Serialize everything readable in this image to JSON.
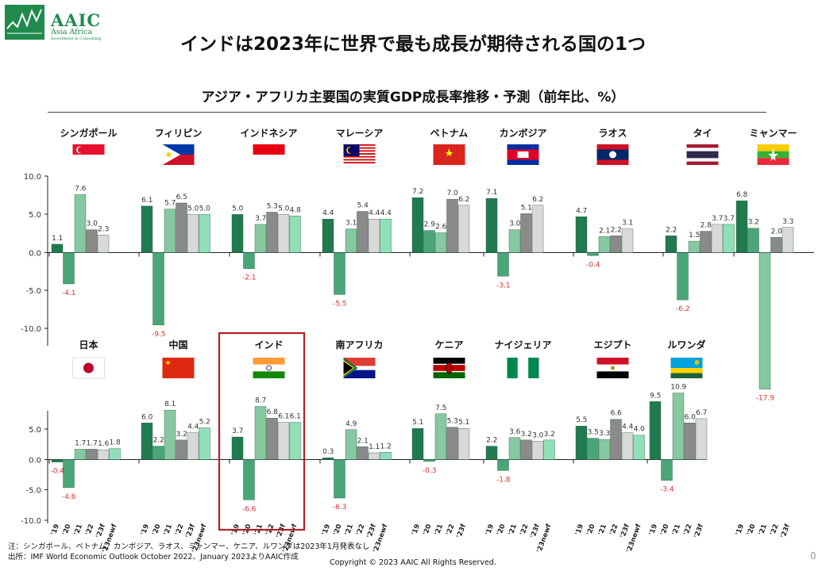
{
  "logo": {
    "name": "AAIC",
    "sub1": "Asia Africa",
    "sub2": "Investment & Consulting"
  },
  "page_title": "インドは2023年に世界で最も成長が期待される国の1つ",
  "notes": {
    "note1": "注：シンガポール、ベトナム、カンボジア、ラオス、ミャンマー、ケニア、ルワンダは2023年1月発表なし",
    "source": "出所：IMF World Economic Outlook October 2022、January 2023よりAAIC作成",
    "copyright": "Copyright © 2023 AAIC All Rights Reserved.",
    "page_number": "0"
  },
  "colors": {
    "bar_2019": "#217a4f",
    "bar_2020": "#4aa678",
    "bar_2021": "#86c8a0",
    "bar_2022": "#8a8a8a",
    "bar_2023f": "#d9d9d9",
    "bar_2023newf": "#8fe0b8",
    "negative_label": "#e03030",
    "highlight_box": "#b22222"
  },
  "chart_data": {
    "type": "bar",
    "title": "アジア・アフリカ主要国の実質GDP成長率推移・予測（前年比、%）",
    "categories": [
      "'19",
      "'20",
      "'21",
      "'22",
      "'23f",
      "'23newf"
    ],
    "highlighted_country": "インド",
    "rows": [
      {
        "ylim": [
          -10,
          10
        ],
        "yticks": [
          "10.0",
          "5.0",
          "0.0",
          "-5.0",
          "-10.0"
        ],
        "countries": [
          {
            "name": "シンガポール",
            "flag": "singapore",
            "values": [
              1.1,
              -4.1,
              7.6,
              3.0,
              2.3,
              null
            ],
            "labels": [
              "1.1",
              "-4.1",
              "7.6",
              "3.0",
              "2.3",
              ""
            ]
          },
          {
            "name": "フィリピン",
            "flag": "philippines",
            "values": [
              6.1,
              -9.5,
              5.7,
              6.5,
              5.0,
              5.0
            ],
            "labels": [
              "6.1",
              "-9.5",
              "5.7",
              "6.5",
              "5.0",
              "5.0"
            ]
          },
          {
            "name": "インドネシア",
            "flag": "indonesia",
            "values": [
              5.0,
              -2.1,
              3.7,
              5.3,
              5.0,
              4.8
            ],
            "labels": [
              "5.0",
              "-2.1",
              "3.7",
              "5.3",
              "5.0",
              "4.8"
            ]
          },
          {
            "name": "マレーシア",
            "flag": "malaysia",
            "values": [
              4.4,
              -5.5,
              3.1,
              5.4,
              4.4,
              4.4
            ],
            "labels": [
              "4.4",
              "-5.5",
              "3.1",
              "5.4",
              "4.4",
              "4.4"
            ]
          },
          {
            "name": "ベトナム",
            "flag": "vietnam",
            "values": [
              7.2,
              2.9,
              2.6,
              7.0,
              6.2,
              null
            ],
            "labels": [
              "7.2",
              "2.9",
              "2.6",
              "7.0",
              "6.2",
              ""
            ]
          },
          {
            "name": "カンボジア",
            "flag": "cambodia",
            "values": [
              7.1,
              -3.1,
              3.0,
              5.1,
              6.2,
              null
            ],
            "labels": [
              "7.1",
              "-3.1",
              "3.0",
              "5.1",
              "6.2",
              ""
            ]
          },
          {
            "name": "ラオス",
            "flag": "laos",
            "values": [
              4.7,
              -0.4,
              2.1,
              2.2,
              3.1,
              null
            ],
            "labels": [
              "4.7",
              "-0.4",
              "2.1",
              "2.2",
              "3.1",
              ""
            ]
          },
          {
            "name": "タイ",
            "flag": "thailand",
            "values": [
              2.2,
              -6.2,
              1.5,
              2.8,
              3.7,
              3.7
            ],
            "labels": [
              "2.2",
              "-6.2",
              "1.5",
              "2.8",
              "3.7",
              "3.7"
            ]
          },
          {
            "name": "ミャンマー",
            "flag": "myanmar",
            "values": [
              6.8,
              3.2,
              -17.9,
              2.0,
              3.3,
              null
            ],
            "labels": [
              "6.8",
              "3.2",
              "-17.9",
              "2.0",
              "3.3",
              ""
            ]
          }
        ]
      },
      {
        "ylim": [
          -10,
          10
        ],
        "yticks": [
          "5.0",
          "0.0",
          "-5.0",
          "-10.0"
        ],
        "countries": [
          {
            "name": "日本",
            "flag": "japan",
            "values": [
              -0.4,
              -4.6,
              1.7,
              1.7,
              1.6,
              1.8
            ],
            "labels": [
              "-0.4",
              "-4.6",
              "1.7",
              "1.7",
              "1.6",
              "1.8"
            ]
          },
          {
            "name": "中国",
            "flag": "china",
            "values": [
              6.0,
              2.2,
              8.1,
              3.2,
              4.4,
              5.2
            ],
            "labels": [
              "6.0",
              "2.2",
              "8.1",
              "3.2",
              "4.4",
              "5.2"
            ]
          },
          {
            "name": "インド",
            "flag": "india",
            "values": [
              3.7,
              -6.6,
              8.7,
              6.8,
              6.1,
              6.1
            ],
            "labels": [
              "3.7",
              "-6.6",
              "8.7",
              "6.8",
              "6.1",
              "6.1"
            ]
          },
          {
            "name": "南アフリカ",
            "flag": "south_africa",
            "values": [
              0.3,
              -6.3,
              4.9,
              2.1,
              1.1,
              1.2
            ],
            "labels": [
              "0.3",
              "-6.3",
              "4.9",
              "2.1",
              "1.1",
              "1.2"
            ]
          },
          {
            "name": "ケニア",
            "flag": "kenya",
            "values": [
              5.1,
              -0.3,
              7.5,
              5.3,
              5.1,
              null
            ],
            "labels": [
              "5.1",
              "-0.3",
              "7.5",
              "5.3",
              "5.1",
              ""
            ]
          },
          {
            "name": "ナイジェリア",
            "flag": "nigeria",
            "values": [
              2.2,
              -1.8,
              3.6,
              3.2,
              3.0,
              3.2
            ],
            "labels": [
              "2.2",
              "-1.8",
              "3.6",
              "3.2",
              "3.0",
              "3.2"
            ]
          },
          {
            "name": "エジプト",
            "flag": "egypt",
            "values": [
              5.5,
              3.5,
              3.3,
              6.6,
              4.4,
              4.0
            ],
            "labels": [
              "5.5",
              "3.5",
              "3.3",
              "6.6",
              "4.4",
              "4.0"
            ]
          },
          {
            "name": "ルワンダ",
            "flag": "rwanda",
            "values": [
              9.5,
              -3.4,
              10.9,
              6.0,
              6.7,
              null
            ],
            "labels": [
              "9.5",
              "-3.4",
              "10.9",
              "6.0",
              "6.7",
              ""
            ]
          }
        ]
      }
    ]
  }
}
